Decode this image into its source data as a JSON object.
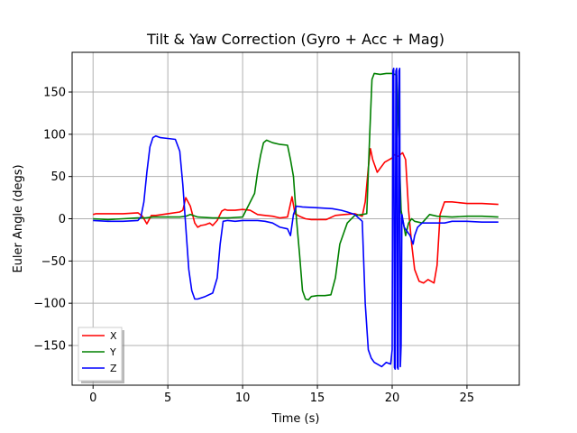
{
  "chart_data": {
    "type": "line",
    "title": "Tilt & Yaw Correction (Gyro + Acc + Mag)",
    "xlabel": "Time (s)",
    "ylabel": "Euler Angle (degs)",
    "xlim": [
      -1.4,
      28.5
    ],
    "ylim": [
      -197,
      197
    ],
    "xticks": [
      0,
      5,
      10,
      15,
      20,
      25
    ],
    "yticks": [
      -150,
      -100,
      -50,
      0,
      50,
      100,
      150
    ],
    "xtick_labels": [
      "0",
      "5",
      "10",
      "15",
      "20",
      "25"
    ],
    "ytick_labels": [
      "−150",
      "−100",
      "−50",
      "0",
      "50",
      "100",
      "150"
    ],
    "grid": true,
    "legend_position": "lower-left",
    "series": [
      {
        "name": "X",
        "color": "#ff0000",
        "x": [
          0,
          0.2,
          1,
          2,
          3,
          3.3,
          3.6,
          3.9,
          4.2,
          5,
          5.8,
          6.0,
          6.2,
          6.5,
          6.8,
          7.0,
          7.2,
          7.5,
          7.8,
          8.0,
          8.3,
          8.6,
          8.8,
          9.0,
          9.5,
          10.0,
          10.5,
          11.0,
          11.5,
          12.0,
          12.5,
          13.0,
          13.3,
          13.5,
          13.8,
          14.2,
          14.6,
          15.0,
          15.6,
          16.2,
          16.8,
          17.5,
          18.0,
          18.2,
          18.4,
          18.55,
          18.7,
          19.0,
          19.5,
          20.0,
          20.1,
          20.4,
          20.7,
          20.9,
          21.1,
          21.3,
          21.5,
          21.8,
          22.1,
          22.4,
          22.8,
          23.0,
          23.2,
          23.5,
          24.0,
          25.0,
          26.0,
          27.1
        ],
        "y": [
          5,
          6,
          6,
          6,
          7,
          3,
          -6,
          4,
          4,
          6,
          8,
          10,
          25,
          15,
          -5,
          -10,
          -8,
          -7,
          -5,
          -8,
          -2,
          9,
          11,
          10,
          10,
          11,
          10,
          5,
          4,
          3,
          1,
          2,
          26,
          6,
          3,
          0,
          -1,
          -1,
          -1,
          4,
          5,
          6,
          3,
          20,
          60,
          83,
          70,
          55,
          67,
          72,
          76,
          74,
          78,
          70,
          10,
          -30,
          -60,
          -74,
          -76,
          -72,
          -76,
          -55,
          5,
          20,
          20,
          18,
          18,
          17
        ]
      },
      {
        "name": "Y",
        "color": "#008000",
        "x": [
          0,
          1,
          2,
          3,
          3.5,
          4,
          5,
          5.8,
          6.2,
          6.5,
          7,
          8,
          9,
          10,
          10.8,
          11.0,
          11.2,
          11.4,
          11.6,
          12.0,
          12.5,
          13.0,
          13.2,
          13.4,
          13.6,
          13.8,
          14.0,
          14.2,
          14.4,
          14.6,
          15.0,
          15.5,
          15.9,
          16.2,
          16.5,
          17.0,
          17.5,
          18.0,
          18.3,
          18.5,
          18.65,
          18.8,
          19.2,
          19.6,
          20.0,
          20.3,
          20.6,
          20.9,
          21.1,
          21.3,
          21.5,
          22.0,
          22.5,
          23.0,
          24.0,
          25.0,
          26.0,
          27.1
        ],
        "y": [
          0,
          -1,
          0,
          1,
          1,
          2,
          2,
          2,
          3,
          5,
          2,
          1,
          1,
          2,
          30,
          55,
          75,
          90,
          93,
          90,
          88,
          87,
          70,
          50,
          0,
          -40,
          -85,
          -95,
          -96,
          -92,
          -91,
          -91,
          -90,
          -70,
          -30,
          -5,
          4,
          5,
          6,
          100,
          165,
          172,
          171,
          172,
          172,
          170,
          10,
          -20,
          -5,
          0,
          -3,
          -5,
          5,
          3,
          2,
          3,
          3,
          2
        ]
      },
      {
        "name": "Z",
        "color": "#0000ff",
        "x": [
          0,
          1,
          2,
          3,
          3.2,
          3.4,
          3.6,
          3.8,
          4.0,
          4.2,
          4.5,
          5.0,
          5.5,
          5.8,
          6.0,
          6.2,
          6.4,
          6.6,
          6.8,
          7.0,
          7.5,
          8.0,
          8.3,
          8.5,
          8.7,
          9.0,
          9.5,
          10.0,
          11.0,
          11.5,
          12.0,
          12.5,
          13.0,
          13.2,
          13.4,
          13.6,
          14.0,
          15.0,
          16.0,
          16.6,
          17.0,
          17.5,
          18.0,
          18.2,
          18.4,
          18.6,
          18.8,
          19.0,
          19.3,
          19.6,
          19.9,
          20.0,
          20.05,
          20.1,
          20.15,
          20.2,
          20.25,
          20.3,
          20.35,
          20.4,
          20.45,
          20.5,
          20.55,
          20.6,
          20.65,
          20.7,
          20.8,
          21.0,
          21.2,
          21.4,
          21.5,
          21.7,
          22.0,
          22.5,
          23.0,
          23.5,
          24.0,
          25.0,
          26.0,
          27.1
        ],
        "y": [
          -2,
          -3,
          -3,
          -2,
          2,
          20,
          55,
          85,
          96,
          98,
          96,
          95,
          94,
          80,
          40,
          -10,
          -60,
          -85,
          -95,
          -95,
          -92,
          -88,
          -70,
          -30,
          -3,
          -2,
          -3,
          -2,
          -2,
          -3,
          -5,
          -10,
          -12,
          -20,
          5,
          15,
          14,
          13,
          12,
          10,
          8,
          5,
          -3,
          -100,
          -155,
          -165,
          -170,
          -172,
          -175,
          -170,
          -172,
          -155,
          175,
          178,
          -176,
          -178,
          175,
          178,
          -176,
          -178,
          175,
          178,
          -175,
          -150,
          5,
          0,
          -10,
          -15,
          -20,
          -30,
          -20,
          -10,
          -5,
          -5,
          -5,
          -5,
          -3,
          -3,
          -4,
          -4
        ]
      }
    ]
  }
}
